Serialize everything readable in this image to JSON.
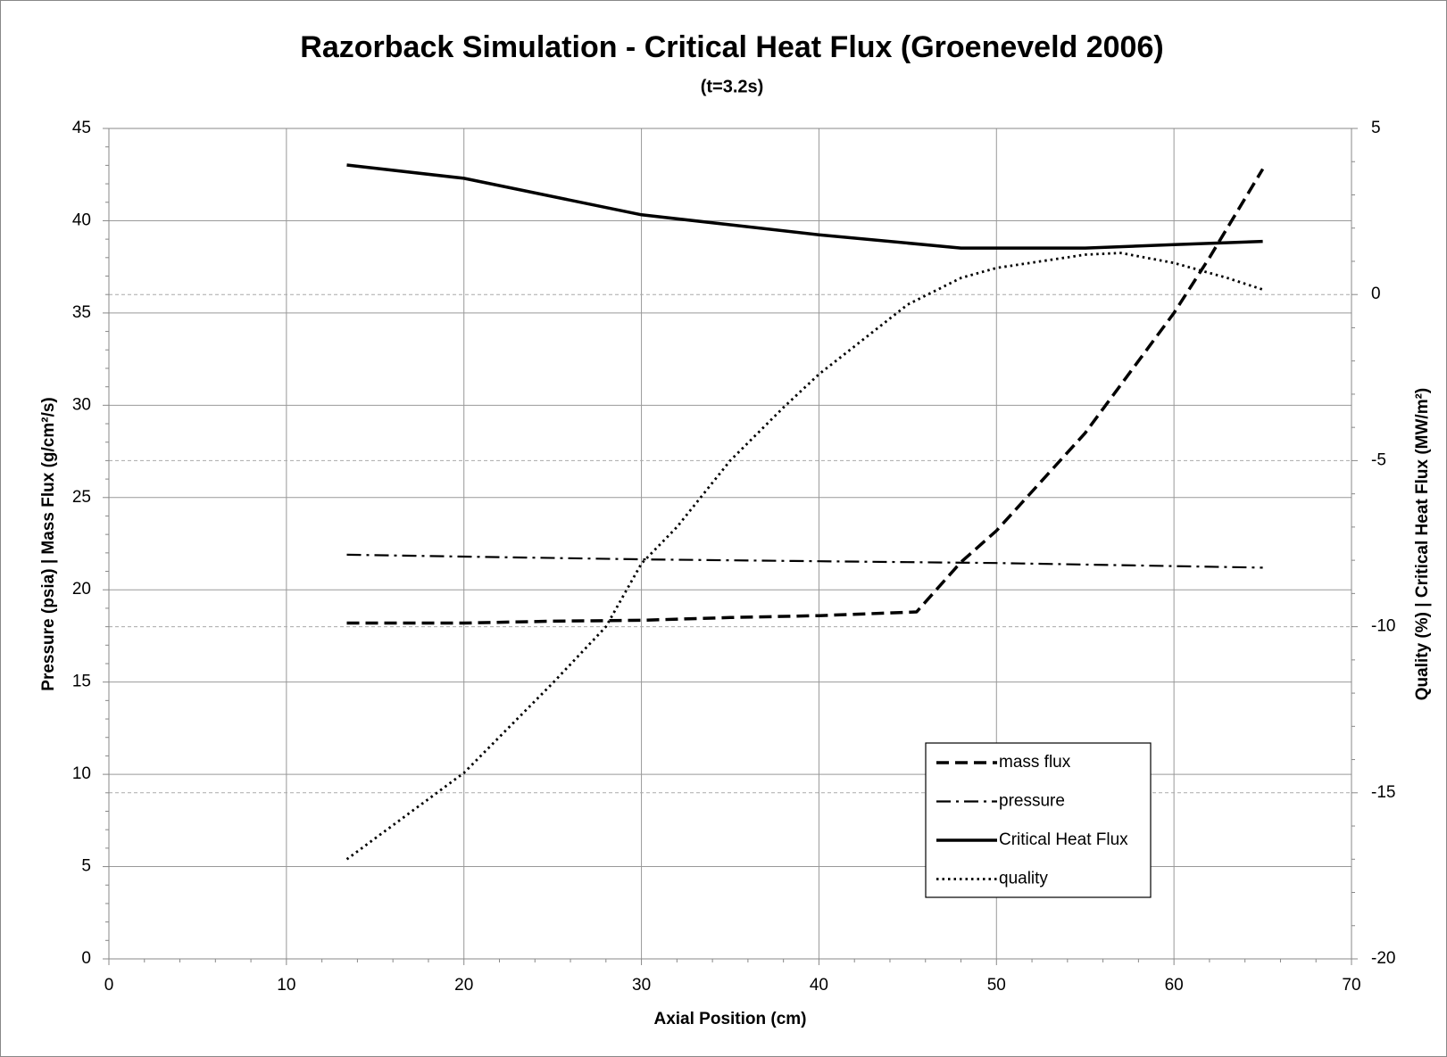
{
  "chart_data": {
    "type": "line",
    "title": "Razorback Simulation - Critical Heat Flux (Groeneveld 2006)",
    "subtitle": "(t=3.2s)",
    "x_label": "Axial Position  (cm)",
    "y_label": "Pressure (psia) | Mass Flux (g/cm²/s)",
    "y2_label": "Quality (%) | Critical Heat Flux (MW/m²)",
    "xlim": [
      0,
      70
    ],
    "xticks": [
      0,
      10,
      20,
      30,
      40,
      50,
      60,
      70
    ],
    "ylim": [
      0,
      45
    ],
    "yticks": [
      0,
      5,
      10,
      15,
      20,
      25,
      30,
      35,
      40,
      45
    ],
    "y2lim": [
      -20,
      5
    ],
    "y2ticks": [
      -20,
      -15,
      -10,
      -5,
      0,
      5
    ],
    "grid": true,
    "legend": "lower right",
    "series": [
      {
        "name": "mass flux",
        "color": "#000000",
        "style": "dashed",
        "axis": "y",
        "x": [
          13.4,
          20,
          25,
          30,
          35,
          40,
          45.5,
          48,
          50,
          55,
          60,
          62,
          65
        ],
        "values": [
          18.2,
          18.2,
          18.3,
          18.35,
          18.5,
          18.6,
          18.8,
          21.5,
          23.2,
          28.5,
          35,
          38,
          42.8
        ]
      },
      {
        "name": "pressure",
        "color": "#000000",
        "style": "dashdot",
        "axis": "y",
        "x": [
          13.4,
          20,
          30,
          40,
          50,
          65
        ],
        "values": [
          21.9,
          21.8,
          21.65,
          21.55,
          21.45,
          21.2
        ]
      },
      {
        "name": "Critical Heat Flux",
        "color": "#000000",
        "style": "solid",
        "axis": "y2",
        "x": [
          13.4,
          20,
          30,
          40,
          48,
          55,
          60,
          65
        ],
        "values": [
          3.9,
          3.5,
          2.4,
          1.8,
          1.4,
          1.4,
          1.5,
          1.6
        ]
      },
      {
        "name": "quality",
        "color": "#000000",
        "style": "dotted",
        "axis": "y2",
        "x": [
          13.4,
          20,
          25,
          28,
          30,
          32,
          35,
          38,
          40,
          45,
          48,
          50,
          55,
          57,
          60,
          63,
          65
        ],
        "values": [
          -17.0,
          -14.4,
          -11.7,
          -10.0,
          -8.1,
          -7.0,
          -5.0,
          -3.4,
          -2.4,
          -0.3,
          0.5,
          0.8,
          1.2,
          1.25,
          0.95,
          0.5,
          0.15
        ]
      }
    ]
  }
}
